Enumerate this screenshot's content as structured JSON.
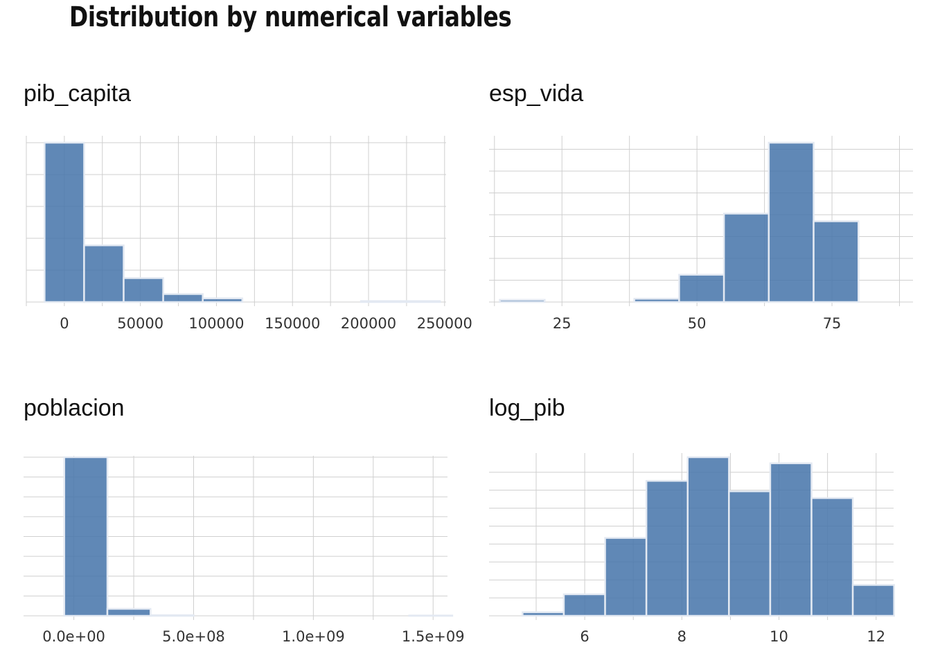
{
  "title": "Distribution by numerical variables",
  "colors": {
    "bar_fill": "#4a78ac",
    "bar_stroke": "#e3e9f2",
    "grid": "#cfcfcf",
    "text": "#111111"
  },
  "chart_data": [
    {
      "type": "bar",
      "title": "pib_capita",
      "xlabel": "",
      "ylabel": "",
      "bin_edges": [
        -13000,
        13000,
        39000,
        65000,
        91000,
        117000,
        143000,
        169000,
        195000,
        221000,
        247000
      ],
      "values": [
        52,
        18.5,
        7.8,
        2.6,
        1.2,
        0,
        0,
        0,
        0.3,
        0.3
      ],
      "xticks": [
        0,
        50000,
        100000,
        150000,
        200000,
        250000
      ],
      "xtick_labels": [
        "0",
        "50000",
        "100000",
        "150000",
        "200000",
        "250000"
      ],
      "xlim": [
        -25000,
        251000
      ],
      "ylim": [
        0,
        52
      ],
      "y_gridlines": [
        0,
        10.4,
        20.8,
        31.2,
        41.6,
        52
      ],
      "grid": true
    },
    {
      "type": "bar",
      "title": "esp_vida",
      "xlabel": "",
      "ylabel": "",
      "bin_edges": [
        13.5,
        21.8,
        30.1,
        38.4,
        46.7,
        55,
        63.3,
        71.6,
        79.9,
        88.2
      ],
      "values": [
        0.2,
        0,
        0,
        0.3,
        2.5,
        8.1,
        14.6,
        7.4,
        0
      ],
      "xticks": [
        25,
        50,
        75
      ],
      "xtick_labels": [
        "25",
        "50",
        "75"
      ],
      "xlim": [
        11.5,
        90
      ],
      "ylim": [
        0,
        14.6
      ],
      "y_gridlines": [
        0,
        2,
        4,
        6,
        8,
        10,
        12,
        14
      ],
      "grid": true
    },
    {
      "type": "bar",
      "title": "poblacion",
      "xlabel": "",
      "ylabel": "",
      "bin_edges": [
        -40000000,
        140000000,
        320000000,
        500000000,
        680000000,
        860000000,
        1040000000,
        1220000000,
        1400000000,
        1580000000
      ],
      "values": [
        160,
        7,
        0.6,
        0,
        0,
        0,
        0,
        0,
        0.3
      ],
      "xticks": [
        0,
        500000000,
        1000000000,
        1500000000
      ],
      "xtick_labels": [
        "0.0e+00",
        "5.0e+08",
        "1.0e+09",
        "1.5e+09"
      ],
      "xlim": [
        -210000000,
        1560000000
      ],
      "ylim": [
        0,
        160
      ],
      "y_gridlines": [
        0,
        20,
        40,
        60,
        80,
        100,
        120,
        140,
        160
      ],
      "grid": true
    },
    {
      "type": "bar",
      "title": "log_pib",
      "xlabel": "",
      "ylabel": "",
      "bin_edges": [
        4.72,
        5.57,
        6.42,
        7.27,
        8.12,
        8.97,
        9.82,
        10.67,
        11.52,
        12.37
      ],
      "values": [
        1,
        6,
        21.7,
        37.6,
        44.2,
        34.7,
        42.5,
        32.8,
        8.6
      ],
      "xticks": [
        6,
        8,
        10,
        12
      ],
      "xtick_labels": [
        "6",
        "8",
        "10",
        "12"
      ],
      "xlim": [
        4.03,
        12.36
      ],
      "ylim": [
        0,
        44.2
      ],
      "y_gridlines": [
        0,
        5,
        10,
        15,
        20,
        25,
        30,
        35,
        40
      ],
      "grid": true
    }
  ]
}
